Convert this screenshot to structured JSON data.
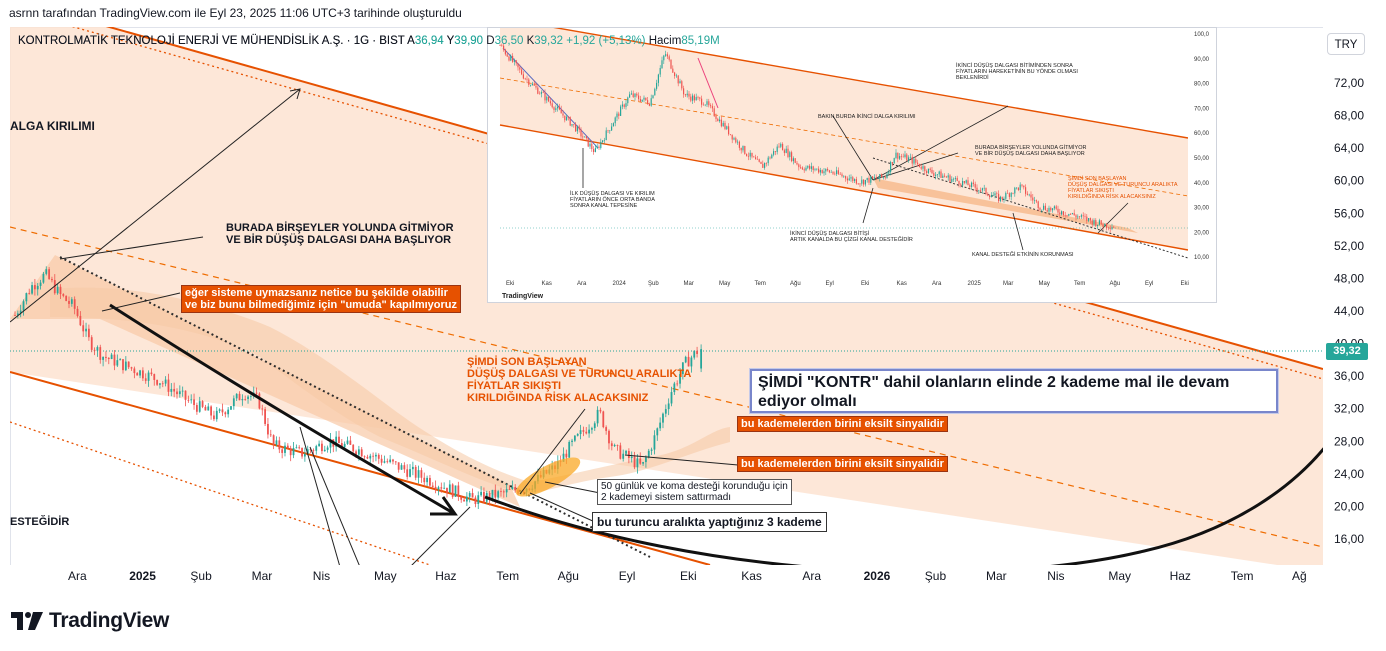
{
  "caption": "asrnn tarafından TradingView.com ile Eyl 23, 2025 11:06 UTC+3 tarihinde oluşturuldu",
  "header": {
    "symbol": "KONTROLMATİK TEKNOLOJİ ENERJİ VE MÜHENDİSLİK A.Ş. · 1G · BIST",
    "a_label": "A",
    "a_value": "36,94",
    "y_label": "Y",
    "y_value": "39,90",
    "d_label": "D",
    "d_value": "36,50",
    "k_label": "K",
    "k_value": "39,32",
    "change": "+1,92 (+5,13%)",
    "volume_label": "Hacim",
    "volume_value": "85,19M"
  },
  "currency_button": "TRY",
  "last_price_tag": "39,32",
  "brand": "TradingView",
  "colors": {
    "up": "#26a69a",
    "down": "#ef5350",
    "channel": "#e65100",
    "fill": "#fbd9c2",
    "bg": "#ffffff"
  },
  "annotations": {
    "dalga_kirilimi": "ALGA KIRILIMI",
    "burada": "BURADA BİRŞEYLER YOLUNDA GİTMİYOR\nVE BİR DÜŞÜŞ DALGASI DAHA BAŞLIYOR",
    "egersistem": "eğer sisteme uymazsanız netice bu şekilde olabilir\nve biz bunu bilmediğimiz için \"umuda\" kapılmıyoruz",
    "simdi_son": "ŞİMDİ SON BAŞLAYAN\nDÜŞÜŞ DALGASI VE TURUNCU ARALIKTA\nFİYATLAR SIKIŞTI\nKIRILDIĞINDA RİSK ALACAKSINIZ",
    "callout": "ŞİMDİ \"KONTR\" dahil olanların elinde 2 kademe mal ile devam ediyor olmalı",
    "eksilt1": "bu kademelerden birini eksilt sinyalidir",
    "eksilt2": "bu kademelerden birini eksilt sinyalidir",
    "elli_gun": "50 günlük ve koma desteği korunduğu için\n2 kademeyi sistem sattırmadı",
    "turuncu": "bu turuncu aralıkta yaptığınız 3 kademe",
    "destegidir": "ESTEĞİDİR"
  },
  "inset": {
    "notes": {
      "ikinci_bitim": "İKİNCİ DÜŞÜŞ DALGASI BİTİMİNDEN SONRA\nFİYATLARIN HAREKETİNİN BU YÖNDE OLMASI\nBEKLENİRDİ",
      "bakin": "BAKIN BURDA İKİNCİ DALGA KIRILIMI",
      "burada": "BURADA BİRŞEYLER YOLUNDA GİTMİYOR\nVE BİR DÜŞÜŞ DALGASI DAHA BAŞLIYOR",
      "simdi": "ŞİMDİ SON BAŞLAYAN\nDÜŞÜŞ DALGASI VE TURUNCU ARALIKTA\nFİYATLAR SIKIŞTI\nKIRILDIĞINDA RİSK ALACAKSINIZ",
      "ilk": "İLK DÜŞÜŞ DALGASI VE KIRILIM\nFİYATLARIN ÖNCE ORTA BANDA\nSONRA KANAL TEPESİNE",
      "ikinci_bitisi": "İKİNCİ DÜŞÜŞ DALGASI BİTİŞİ\nARTIK KANALDA BU ÇİZGİ KANAL DESTEĞİDİR",
      "kanal": "KANAL DESTEĞİ ETKİNİN KORUNMASI"
    },
    "price_ticks": [
      "100,0",
      "90,00",
      "80,00",
      "70,00",
      "60,00",
      "50,00",
      "40,00",
      "30,00",
      "20,00",
      "10,00"
    ],
    "time_ticks": [
      "Eki",
      "Kas",
      "Ara",
      "2024",
      "Şub",
      "Mar",
      "May",
      "Tem",
      "Ağu",
      "Eyl",
      "Eki",
      "Kas",
      "Ara",
      "2025",
      "Mar",
      "May",
      "Tem",
      "Ağu",
      "Eyl",
      "Eki"
    ],
    "brand": "TradingView"
  },
  "chart_data": {
    "type": "candlestick",
    "symbol": "KONTROLMATİK TEKNOLOJİ ENERJİ VE MÜHENDİSLİK A.Ş.",
    "interval": "1G",
    "exchange": "BIST",
    "currency": "TRY",
    "last": {
      "open": 36.94,
      "high": 39.9,
      "low": 36.5,
      "close": 39.32,
      "change": 1.92,
      "change_pct": 5.13,
      "volume": "85,19M"
    },
    "y_ticks": [
      "72,00",
      "68,00",
      "64,00",
      "60,00",
      "56,00",
      "52,00",
      "48,00",
      "44,00",
      "40,00",
      "36,00",
      "32,00",
      "28,00",
      "24,00",
      "20,00",
      "16,00"
    ],
    "x_ticks": [
      "Ara",
      "2025",
      "Şub",
      "Mar",
      "Nis",
      "May",
      "Haz",
      "Tem",
      "Ağu",
      "Eyl",
      "Eki",
      "Kas",
      "Ara",
      "2026",
      "Şub",
      "Mar",
      "Nis",
      "May",
      "Haz",
      "Tem",
      "Ağ"
    ],
    "ylim": [
      13,
      76
    ],
    "approx_close_path": [
      [
        "2024-11-20",
        43.5
      ],
      [
        "2024-11-28",
        47.0
      ],
      [
        "2024-12-05",
        48.5
      ],
      [
        "2024-12-12",
        46.0
      ],
      [
        "2024-12-19",
        44.5
      ],
      [
        "2024-12-26",
        40.5
      ],
      [
        "2025-01-02",
        38.5
      ],
      [
        "2025-01-16",
        37.0
      ],
      [
        "2025-01-30",
        35.5
      ],
      [
        "2025-02-13",
        33.0
      ],
      [
        "2025-02-27",
        31.0
      ],
      [
        "2025-03-13",
        34.0
      ],
      [
        "2025-03-20",
        33.0
      ],
      [
        "2025-03-27",
        27.5
      ],
      [
        "2025-04-10",
        26.5
      ],
      [
        "2025-04-24",
        28.0
      ],
      [
        "2025-05-08",
        27.0
      ],
      [
        "2025-05-22",
        25.5
      ],
      [
        "2025-06-05",
        24.0
      ],
      [
        "2025-06-19",
        22.5
      ],
      [
        "2025-07-03",
        20.8
      ],
      [
        "2025-07-17",
        21.5
      ],
      [
        "2025-07-31",
        22.5
      ],
      [
        "2025-08-14",
        25.0
      ],
      [
        "2025-08-21",
        27.5
      ],
      [
        "2025-09-04",
        31.5
      ],
      [
        "2025-09-11",
        27.0
      ],
      [
        "2025-09-18",
        26.0
      ],
      [
        "2025-09-25",
        24.8
      ],
      [
        "2025-10-02",
        29.0
      ],
      [
        "2025-10-09",
        34.0
      ],
      [
        "2025-10-16",
        37.5
      ],
      [
        "2025-10-23",
        39.32
      ]
    ]
  }
}
